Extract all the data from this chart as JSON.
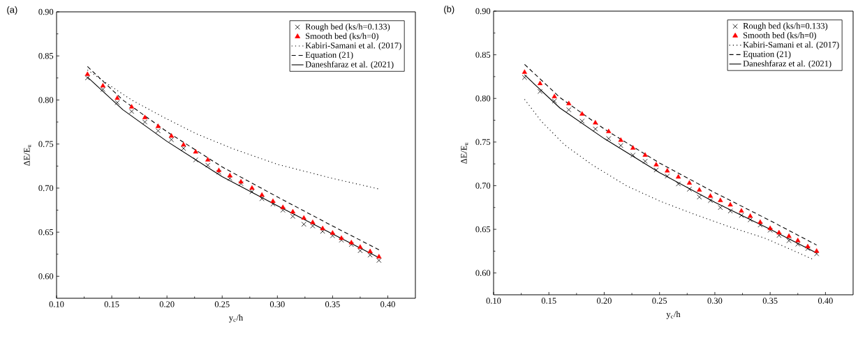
{
  "chart_data": [
    {
      "type": "scatter",
      "annotations": [
        "(a)"
      ],
      "xlabel": "y$_{c}$/h",
      "ylabel": "ΔE/E$_{u}$",
      "xlim": [
        0.1,
        0.425
      ],
      "ylim": [
        0.575,
        0.9
      ],
      "xticks": [
        {
          "value": 0.1,
          "label": "0.10"
        },
        {
          "value": 0.15,
          "label": "0.15"
        },
        {
          "value": 0.2,
          "label": "0.20"
        },
        {
          "value": 0.25,
          "label": "0.25"
        },
        {
          "value": 0.3,
          "label": "0.30"
        },
        {
          "value": 0.35,
          "label": "0.35"
        },
        {
          "value": 0.4,
          "label": "0.40"
        }
      ],
      "yticks": [
        {
          "value": 0.6,
          "label": "0.60"
        },
        {
          "value": 0.65,
          "label": "0.65"
        },
        {
          "value": 0.7,
          "label": "0.70"
        },
        {
          "value": 0.75,
          "label": "0.75"
        },
        {
          "value": 0.8,
          "label": "0.80"
        },
        {
          "value": 0.85,
          "label": "0.85"
        },
        {
          "value": 0.9,
          "label": "0.90"
        }
      ],
      "legend": "top right",
      "grid": false,
      "x": [
        0.128,
        0.142,
        0.155,
        0.168,
        0.18,
        0.192,
        0.204,
        0.215,
        0.226,
        0.237,
        0.247,
        0.257,
        0.267,
        0.277,
        0.286,
        0.296,
        0.305,
        0.314,
        0.324,
        0.332,
        0.341,
        0.35,
        0.358,
        0.367,
        0.375,
        0.384,
        0.392
      ],
      "series": [
        {
          "name": "Rough bed (ks/h=0.133)",
          "marker": "cross",
          "color": "#000000",
          "values": [
            0.825,
            0.812,
            0.797,
            0.787,
            0.775,
            0.765,
            0.755,
            0.745,
            0.732,
            0.726,
            0.718,
            0.711,
            0.705,
            0.696,
            0.688,
            0.682,
            0.675,
            0.668,
            0.659,
            0.657,
            0.651,
            0.646,
            0.641,
            0.636,
            0.629,
            0.624,
            0.618
          ]
        },
        {
          "name": "Smooth bed (ks/h=0)",
          "marker": "triangle",
          "color": "#ff0000",
          "values": [
            0.829,
            0.816,
            0.802,
            0.792,
            0.78,
            0.77,
            0.759,
            0.749,
            0.741,
            0.732,
            0.72,
            0.714,
            0.707,
            0.7,
            0.692,
            0.685,
            0.678,
            0.673,
            0.666,
            0.661,
            0.654,
            0.649,
            0.643,
            0.638,
            0.633,
            0.628,
            0.622
          ]
        },
        {
          "name": "Kabiri-Samani et al. (2017)",
          "type": "line",
          "line_style": "dotted",
          "color": "#000000",
          "x": [
            0.128,
            0.15,
            0.168,
            0.196,
            0.226,
            0.259,
            0.3,
            0.35,
            0.392
          ],
          "values": [
            0.834,
            0.815,
            0.8,
            0.781,
            0.762,
            0.745,
            0.727,
            0.711,
            0.699
          ]
        },
        {
          "name": "Equation (21)",
          "type": "line",
          "line_style": "dashed",
          "color": "#000000",
          "x": [
            0.128,
            0.16,
            0.2,
            0.25,
            0.3,
            0.35,
            0.392
          ],
          "values": [
            0.838,
            0.8,
            0.764,
            0.724,
            0.69,
            0.657,
            0.63
          ]
        },
        {
          "name": "Daneshfaraz et al. (2021)",
          "type": "line",
          "line_style": "solid",
          "color": "#000000",
          "x": [
            0.128,
            0.16,
            0.2,
            0.25,
            0.3,
            0.35,
            0.392
          ],
          "values": [
            0.826,
            0.789,
            0.753,
            0.713,
            0.68,
            0.648,
            0.621
          ]
        }
      ]
    },
    {
      "type": "scatter",
      "annotations": [
        "(b)"
      ],
      "xlabel": "y$_{c}$/h",
      "ylabel": "ΔE/E$_{u}$",
      "xlim": [
        0.1,
        0.425
      ],
      "ylim": [
        0.575,
        0.9
      ],
      "xticks": [
        {
          "value": 0.1,
          "label": "0.10"
        },
        {
          "value": 0.15,
          "label": "0.15"
        },
        {
          "value": 0.2,
          "label": "0.20"
        },
        {
          "value": 0.25,
          "label": "0.25"
        },
        {
          "value": 0.3,
          "label": "0.30"
        },
        {
          "value": 0.35,
          "label": "0.35"
        },
        {
          "value": 0.4,
          "label": "0.40"
        }
      ],
      "yticks": [
        {
          "value": 0.6,
          "label": "0.60"
        },
        {
          "value": 0.65,
          "label": "0.65"
        },
        {
          "value": 0.7,
          "label": "0.70"
        },
        {
          "value": 0.75,
          "label": "0.75"
        },
        {
          "value": 0.8,
          "label": "0.80"
        },
        {
          "value": 0.85,
          "label": "0.85"
        },
        {
          "value": 0.9,
          "label": "0.90"
        }
      ],
      "legend": "top right",
      "grid": false,
      "x": [
        0.128,
        0.142,
        0.155,
        0.168,
        0.18,
        0.192,
        0.204,
        0.215,
        0.226,
        0.237,
        0.247,
        0.257,
        0.267,
        0.277,
        0.286,
        0.296,
        0.305,
        0.314,
        0.324,
        0.332,
        0.341,
        0.35,
        0.358,
        0.367,
        0.375,
        0.384,
        0.392
      ],
      "series": [
        {
          "name": "Rough bed (ks/h=0.133)",
          "marker": "cross",
          "color": "#000000",
          "values": [
            0.824,
            0.808,
            0.797,
            0.787,
            0.774,
            0.765,
            0.754,
            0.746,
            0.735,
            0.728,
            0.718,
            0.711,
            0.702,
            0.696,
            0.687,
            0.683,
            0.675,
            0.671,
            0.666,
            0.661,
            0.655,
            0.649,
            0.643,
            0.637,
            0.633,
            0.628,
            0.622
          ]
        },
        {
          "name": "Smooth bed (ks/h=0)",
          "marker": "triangle",
          "color": "#ff0000",
          "values": [
            0.83,
            0.817,
            0.802,
            0.794,
            0.782,
            0.772,
            0.762,
            0.752,
            0.743,
            0.735,
            0.724,
            0.717,
            0.71,
            0.703,
            0.695,
            0.688,
            0.683,
            0.678,
            0.671,
            0.665,
            0.658,
            0.651,
            0.646,
            0.642,
            0.637,
            0.63,
            0.625
          ]
        },
        {
          "name": "Kabiri-Samani et al. (2017)",
          "type": "line",
          "line_style": "dotted",
          "color": "#000000",
          "x": [
            0.128,
            0.143,
            0.164,
            0.189,
            0.22,
            0.251,
            0.282,
            0.313,
            0.345,
            0.365,
            0.388
          ],
          "values": [
            0.799,
            0.774,
            0.747,
            0.724,
            0.7,
            0.682,
            0.667,
            0.653,
            0.64,
            0.629,
            0.616
          ]
        },
        {
          "name": "Equation (21)",
          "type": "line",
          "line_style": "dashed",
          "color": "#000000",
          "x": [
            0.128,
            0.16,
            0.2,
            0.25,
            0.3,
            0.35,
            0.392
          ],
          "values": [
            0.839,
            0.801,
            0.765,
            0.726,
            0.692,
            0.66,
            0.632
          ]
        },
        {
          "name": "Daneshfaraz et al. (2021)",
          "type": "line",
          "line_style": "solid",
          "color": "#000000",
          "x": [
            0.128,
            0.16,
            0.2,
            0.25,
            0.3,
            0.35,
            0.392
          ],
          "values": [
            0.827,
            0.789,
            0.754,
            0.715,
            0.681,
            0.65,
            0.623
          ]
        }
      ]
    }
  ]
}
